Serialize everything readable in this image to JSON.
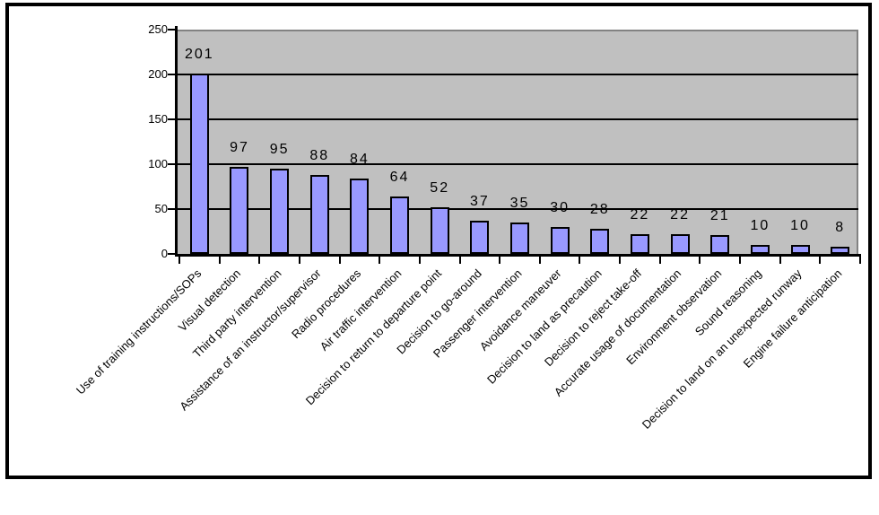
{
  "chart_data": {
    "type": "bar",
    "title": "",
    "xlabel": "",
    "ylabel": "",
    "categories": [
      "Use of training instructions/SOPs",
      "Visual detection",
      "Third party intervention",
      "Assistance of an instructor/supervisor",
      "Radio procedures",
      "Air traffic intervention",
      "Decision to return to departure point",
      "Decision to go-around",
      "Passenger intervention",
      "Avoidance maneuver",
      "Decision to land as precaution",
      "Decision to reject take-off",
      "Accurate usage of documentation",
      "Environment observation",
      "Sound reasoning",
      "Decision to land on an unexpected runway",
      "Engine failure anticipation"
    ],
    "values": [
      201,
      97,
      95,
      88,
      84,
      64,
      52,
      37,
      35,
      30,
      28,
      22,
      22,
      21,
      10,
      10,
      8
    ],
    "data_labels_shown": true,
    "ylim": [
      0,
      250
    ],
    "yticks": [
      0,
      50,
      100,
      150,
      200,
      250
    ],
    "grid": "horizontal-major",
    "legend": "none",
    "category_label_rotation_deg": 45,
    "colors": {
      "bar_fill": "#9999FF",
      "bar_border": "#000000",
      "plot_background": "#C0C0C0",
      "plot_border": "#828282",
      "gridline": "#000000",
      "axis": "#000000",
      "text": "#000000",
      "chart_border": "#000000",
      "chart_background": "#FFFFFF"
    }
  }
}
